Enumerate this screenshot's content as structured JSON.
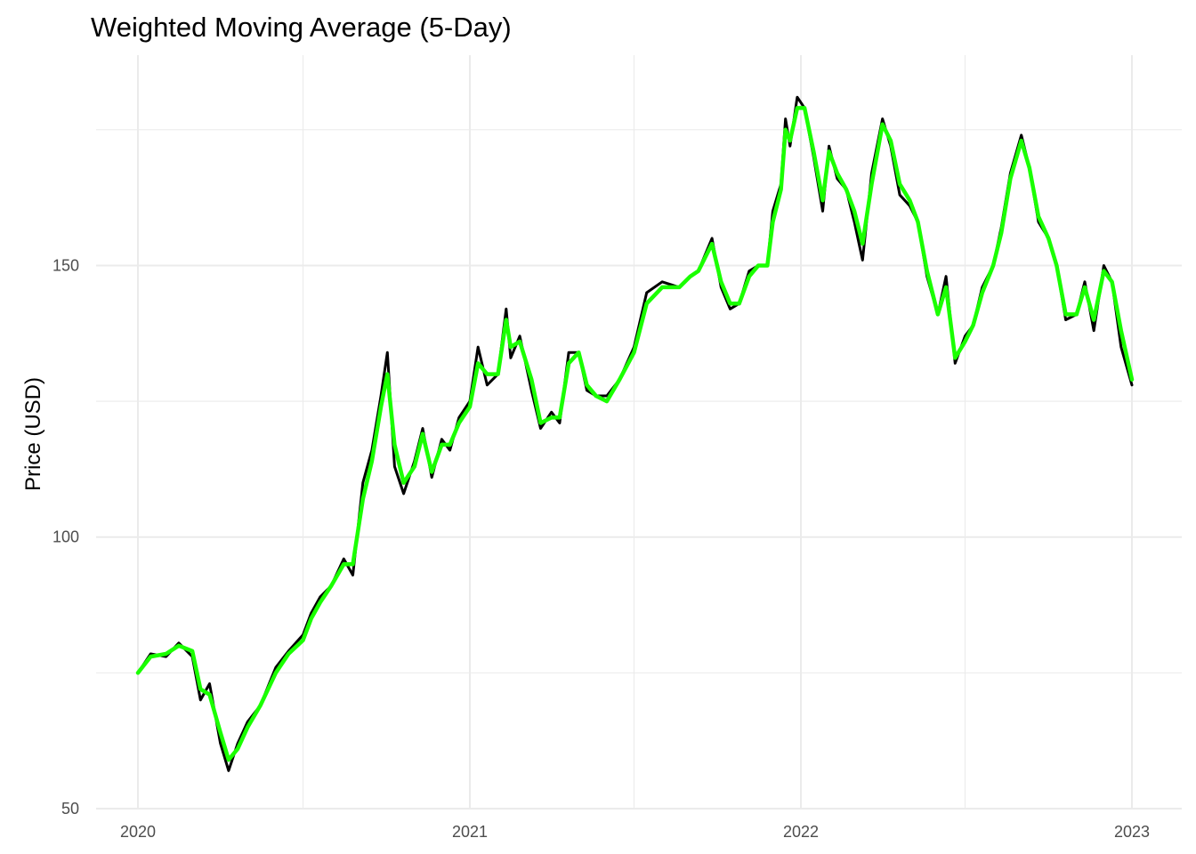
{
  "chart_data": {
    "type": "line",
    "title": "Weighted Moving Average (5-Day)",
    "xlabel": "",
    "ylabel": "Price (USD)",
    "xlim": [
      "2020-01-01",
      "2023-01-01"
    ],
    "ylim": [
      50,
      183
    ],
    "x_ticks": [
      "2020",
      "2021",
      "2022",
      "2023"
    ],
    "y_ticks": [
      50,
      100,
      150
    ],
    "grid": true,
    "legend": "none",
    "series": [
      {
        "color": "#000000",
        "points": [
          [
            "2020-01-01",
            75
          ],
          [
            "2020-01-15",
            78.5
          ],
          [
            "2020-02-01",
            78
          ],
          [
            "2020-02-15",
            80.5
          ],
          [
            "2020-03-01",
            78
          ],
          [
            "2020-03-10",
            70
          ],
          [
            "2020-03-20",
            73
          ],
          [
            "2020-04-01",
            62
          ],
          [
            "2020-04-10",
            57
          ],
          [
            "2020-04-20",
            62
          ],
          [
            "2020-05-01",
            66
          ],
          [
            "2020-05-15",
            69
          ],
          [
            "2020-06-01",
            76
          ],
          [
            "2020-06-15",
            79
          ],
          [
            "2020-07-01",
            82
          ],
          [
            "2020-07-10",
            86
          ],
          [
            "2020-07-20",
            89
          ],
          [
            "2020-08-01",
            91
          ],
          [
            "2020-08-15",
            96
          ],
          [
            "2020-08-25",
            93
          ],
          [
            "2020-09-05",
            110
          ],
          [
            "2020-09-15",
            116
          ],
          [
            "2020-09-25",
            126
          ],
          [
            "2020-10-02",
            134
          ],
          [
            "2020-10-10",
            113
          ],
          [
            "2020-10-20",
            108
          ],
          [
            "2020-11-01",
            114
          ],
          [
            "2020-11-10",
            120
          ],
          [
            "2020-11-20",
            111
          ],
          [
            "2020-12-01",
            118
          ],
          [
            "2020-12-10",
            116
          ],
          [
            "2020-12-20",
            122
          ],
          [
            "2021-01-01",
            125
          ],
          [
            "2021-01-10",
            135
          ],
          [
            "2021-01-20",
            128
          ],
          [
            "2021-02-01",
            130
          ],
          [
            "2021-02-10",
            142
          ],
          [
            "2021-02-15",
            133
          ],
          [
            "2021-02-25",
            137
          ],
          [
            "2021-03-10",
            127
          ],
          [
            "2021-03-20",
            120
          ],
          [
            "2021-04-01",
            123
          ],
          [
            "2021-04-10",
            121
          ],
          [
            "2021-04-20",
            134
          ],
          [
            "2021-05-01",
            134
          ],
          [
            "2021-05-10",
            127
          ],
          [
            "2021-05-20",
            126
          ],
          [
            "2021-06-01",
            126
          ],
          [
            "2021-06-15",
            129
          ],
          [
            "2021-07-01",
            135
          ],
          [
            "2021-07-15",
            145
          ],
          [
            "2021-08-01",
            147
          ],
          [
            "2021-08-20",
            146
          ],
          [
            "2021-09-01",
            148
          ],
          [
            "2021-09-10",
            149
          ],
          [
            "2021-09-25",
            155
          ],
          [
            "2021-10-05",
            146
          ],
          [
            "2021-10-15",
            142
          ],
          [
            "2021-10-25",
            143
          ],
          [
            "2021-11-05",
            149
          ],
          [
            "2021-11-15",
            150
          ],
          [
            "2021-11-25",
            150
          ],
          [
            "2021-12-01",
            160
          ],
          [
            "2021-12-10",
            165
          ],
          [
            "2021-12-15",
            177
          ],
          [
            "2021-12-20",
            172
          ],
          [
            "2021-12-28",
            181
          ],
          [
            "2022-01-05",
            179
          ],
          [
            "2022-01-15",
            170
          ],
          [
            "2022-01-25",
            160
          ],
          [
            "2022-02-01",
            172
          ],
          [
            "2022-02-10",
            166
          ],
          [
            "2022-02-20",
            164
          ],
          [
            "2022-03-01",
            158
          ],
          [
            "2022-03-10",
            151
          ],
          [
            "2022-03-20",
            167
          ],
          [
            "2022-04-01",
            177
          ],
          [
            "2022-04-10",
            172
          ],
          [
            "2022-04-20",
            163
          ],
          [
            "2022-05-01",
            161
          ],
          [
            "2022-05-10",
            158
          ],
          [
            "2022-05-20",
            148
          ],
          [
            "2022-06-01",
            141
          ],
          [
            "2022-06-10",
            148
          ],
          [
            "2022-06-20",
            132
          ],
          [
            "2022-07-01",
            137
          ],
          [
            "2022-07-10",
            139
          ],
          [
            "2022-07-20",
            146
          ],
          [
            "2022-08-01",
            150
          ],
          [
            "2022-08-10",
            157
          ],
          [
            "2022-08-20",
            167
          ],
          [
            "2022-09-01",
            174
          ],
          [
            "2022-09-10",
            168
          ],
          [
            "2022-09-20",
            158
          ],
          [
            "2022-10-01",
            155
          ],
          [
            "2022-10-10",
            150
          ],
          [
            "2022-10-20",
            140
          ],
          [
            "2022-11-01",
            141
          ],
          [
            "2022-11-10",
            147
          ],
          [
            "2022-11-20",
            138
          ],
          [
            "2022-12-01",
            150
          ],
          [
            "2022-12-10",
            147
          ],
          [
            "2022-12-20",
            135
          ],
          [
            "2023-01-01",
            128
          ]
        ]
      },
      {
        "color": "#1aff00",
        "points": [
          [
            "2020-01-01",
            75
          ],
          [
            "2020-01-15",
            78
          ],
          [
            "2020-02-01",
            78.5
          ],
          [
            "2020-02-15",
            80
          ],
          [
            "2020-03-01",
            79
          ],
          [
            "2020-03-10",
            72
          ],
          [
            "2020-03-20",
            71
          ],
          [
            "2020-04-01",
            64
          ],
          [
            "2020-04-10",
            59
          ],
          [
            "2020-04-20",
            61
          ],
          [
            "2020-05-01",
            65
          ],
          [
            "2020-05-15",
            69
          ],
          [
            "2020-06-01",
            75
          ],
          [
            "2020-06-15",
            78.5
          ],
          [
            "2020-07-01",
            81
          ],
          [
            "2020-07-10",
            85
          ],
          [
            "2020-07-20",
            88
          ],
          [
            "2020-08-01",
            91
          ],
          [
            "2020-08-15",
            95
          ],
          [
            "2020-08-25",
            95
          ],
          [
            "2020-09-05",
            107
          ],
          [
            "2020-09-15",
            114
          ],
          [
            "2020-09-25",
            124
          ],
          [
            "2020-10-02",
            130
          ],
          [
            "2020-10-10",
            117
          ],
          [
            "2020-10-20",
            110
          ],
          [
            "2020-11-01",
            113
          ],
          [
            "2020-11-10",
            119
          ],
          [
            "2020-11-20",
            112
          ],
          [
            "2020-12-01",
            117
          ],
          [
            "2020-12-10",
            117
          ],
          [
            "2020-12-20",
            121
          ],
          [
            "2021-01-01",
            124
          ],
          [
            "2021-01-10",
            132
          ],
          [
            "2021-01-20",
            130
          ],
          [
            "2021-02-01",
            130
          ],
          [
            "2021-02-10",
            140
          ],
          [
            "2021-02-15",
            135
          ],
          [
            "2021-02-25",
            136
          ],
          [
            "2021-03-10",
            129
          ],
          [
            "2021-03-20",
            121
          ],
          [
            "2021-04-01",
            122
          ],
          [
            "2021-04-10",
            122
          ],
          [
            "2021-04-20",
            132
          ],
          [
            "2021-05-01",
            134
          ],
          [
            "2021-05-10",
            128
          ],
          [
            "2021-05-20",
            126
          ],
          [
            "2021-06-01",
            125
          ],
          [
            "2021-06-15",
            129
          ],
          [
            "2021-07-01",
            134
          ],
          [
            "2021-07-15",
            143
          ],
          [
            "2021-08-01",
            146
          ],
          [
            "2021-08-20",
            146
          ],
          [
            "2021-09-01",
            148
          ],
          [
            "2021-09-10",
            149
          ],
          [
            "2021-09-25",
            154
          ],
          [
            "2021-10-05",
            147
          ],
          [
            "2021-10-15",
            143
          ],
          [
            "2021-10-25",
            143
          ],
          [
            "2021-11-05",
            148
          ],
          [
            "2021-11-15",
            150
          ],
          [
            "2021-11-25",
            150
          ],
          [
            "2021-12-01",
            158
          ],
          [
            "2021-12-10",
            164
          ],
          [
            "2021-12-15",
            175
          ],
          [
            "2021-12-20",
            173
          ],
          [
            "2021-12-28",
            179
          ],
          [
            "2022-01-05",
            179
          ],
          [
            "2022-01-15",
            171
          ],
          [
            "2022-01-25",
            162
          ],
          [
            "2022-02-01",
            171
          ],
          [
            "2022-02-10",
            167
          ],
          [
            "2022-02-20",
            164
          ],
          [
            "2022-03-01",
            160
          ],
          [
            "2022-03-10",
            154
          ],
          [
            "2022-03-20",
            165
          ],
          [
            "2022-04-01",
            176
          ],
          [
            "2022-04-10",
            173
          ],
          [
            "2022-04-20",
            165
          ],
          [
            "2022-05-01",
            162
          ],
          [
            "2022-05-10",
            158
          ],
          [
            "2022-05-20",
            149
          ],
          [
            "2022-06-01",
            141
          ],
          [
            "2022-06-10",
            146
          ],
          [
            "2022-06-20",
            133
          ],
          [
            "2022-07-01",
            136
          ],
          [
            "2022-07-10",
            139
          ],
          [
            "2022-07-20",
            145
          ],
          [
            "2022-08-01",
            150
          ],
          [
            "2022-08-10",
            156
          ],
          [
            "2022-08-20",
            166
          ],
          [
            "2022-09-01",
            173
          ],
          [
            "2022-09-10",
            168
          ],
          [
            "2022-09-20",
            159
          ],
          [
            "2022-10-01",
            155
          ],
          [
            "2022-10-10",
            150
          ],
          [
            "2022-10-20",
            141
          ],
          [
            "2022-11-01",
            141
          ],
          [
            "2022-11-10",
            146
          ],
          [
            "2022-11-20",
            140
          ],
          [
            "2022-12-01",
            149
          ],
          [
            "2022-12-10",
            147
          ],
          [
            "2022-12-20",
            138
          ],
          [
            "2023-01-01",
            129
          ]
        ]
      }
    ]
  }
}
